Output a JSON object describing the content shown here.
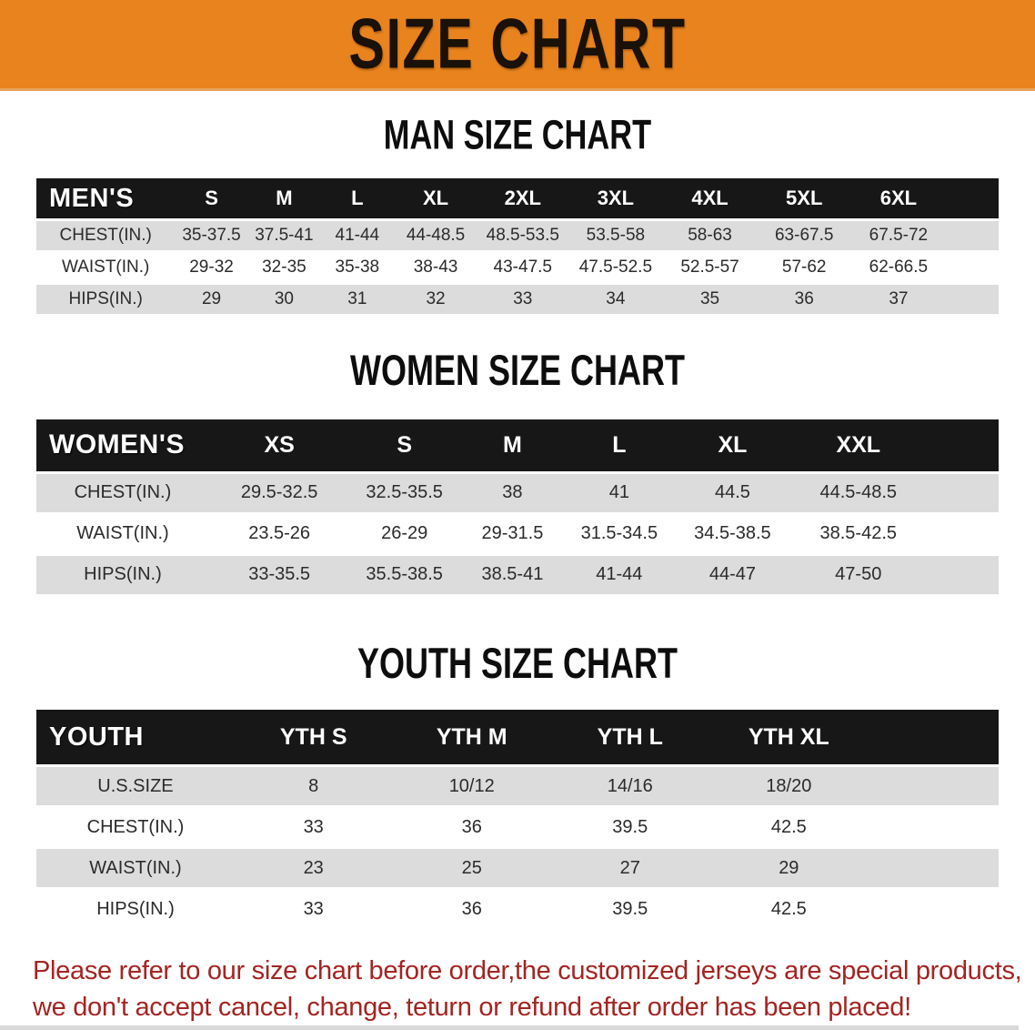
{
  "banner": {
    "title": "SIZE CHART",
    "bg_color": "#E8831E",
    "text_color": "#1a1108"
  },
  "sections": [
    {
      "heading": "MAN SIZE CHART",
      "header_label": "MEN'S",
      "columns": [
        "S",
        "M",
        "L",
        "XL",
        "2XL",
        "3XL",
        "4XL",
        "5XL",
        "6XL"
      ],
      "rows": [
        {
          "label": "CHEST(IN.)",
          "values": [
            "35-37.5",
            "37.5-41",
            "41-44",
            "44-48.5",
            "48.5-53.5",
            "53.5-58",
            "58-63",
            "63-67.5",
            "67.5-72"
          ]
        },
        {
          "label": "WAIST(IN.)",
          "values": [
            "29-32",
            "32-35",
            "35-38",
            "38-43",
            "43-47.5",
            "47.5-52.5",
            "52.5-57",
            "57-62",
            "62-66.5"
          ]
        },
        {
          "label": "HIPS(IN.)",
          "values": [
            "29",
            "30",
            "31",
            "32",
            "33",
            "34",
            "35",
            "36",
            "37"
          ]
        }
      ]
    },
    {
      "heading": "WOMEN SIZE CHART",
      "header_label": "WOMEN'S",
      "columns": [
        "XS",
        "S",
        "M",
        "L",
        "XL",
        "XXL"
      ],
      "rows": [
        {
          "label": "CHEST(IN.)",
          "values": [
            "29.5-32.5",
            "32.5-35.5",
            "38",
            "41",
            "44.5",
            "44.5-48.5"
          ]
        },
        {
          "label": "WAIST(IN.)",
          "values": [
            "23.5-26",
            "26-29",
            "29-31.5",
            "31.5-34.5",
            "34.5-38.5",
            "38.5-42.5"
          ]
        },
        {
          "label": "HIPS(IN.)",
          "values": [
            "33-35.5",
            "35.5-38.5",
            "38.5-41",
            "41-44",
            "44-47",
            "47-50"
          ]
        }
      ]
    },
    {
      "heading": "YOUTH SIZE CHART",
      "header_label": "YOUTH",
      "columns": [
        "YTH S",
        "YTH M",
        "YTH L",
        "YTH XL"
      ],
      "rows": [
        {
          "label": "U.S.SIZE",
          "values": [
            "8",
            "10/12",
            "14/16",
            "18/20"
          ]
        },
        {
          "label": "CHEST(IN.)",
          "values": [
            "33",
            "36",
            "39.5",
            "42.5"
          ]
        },
        {
          "label": "WAIST(IN.)",
          "values": [
            "23",
            "25",
            "27",
            "29"
          ]
        },
        {
          "label": "HIPS(IN.)",
          "values": [
            "33",
            "36",
            "39.5",
            "42.5"
          ]
        }
      ]
    }
  ],
  "disclaimer": {
    "line1": "Please refer to our size chart before order,the customized jerseys are special products,",
    "line2": "we don't accept cancel, change, teturn or refund after order has been placed!",
    "color": "#A32421"
  },
  "colors": {
    "banner_orange": "#E8831E",
    "table_header_black": "#171717",
    "stripe_gray": "#dcdcdc",
    "cell_text": "#2b2b2b",
    "disclaimer_red": "#A32421"
  }
}
